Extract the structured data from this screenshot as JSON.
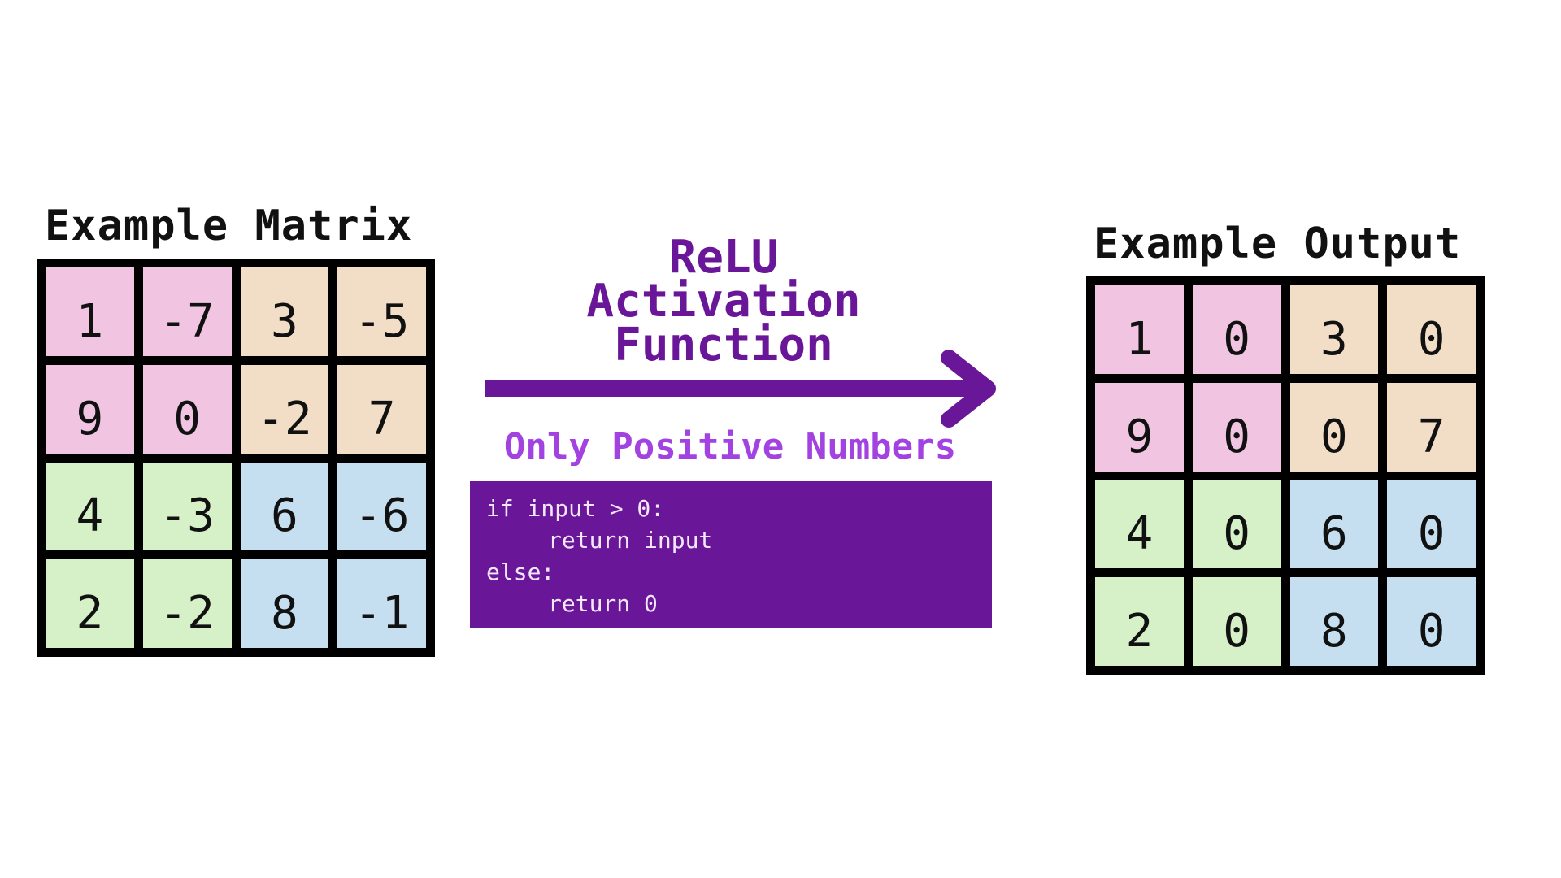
{
  "input_matrix": {
    "title": "Example Matrix",
    "rows": [
      [
        "1",
        "-7",
        "3",
        "-5"
      ],
      [
        "9",
        "0",
        "-2",
        "7"
      ],
      [
        "4",
        "-3",
        "6",
        "-6"
      ],
      [
        "2",
        "-2",
        "8",
        "-1"
      ]
    ]
  },
  "output_matrix": {
    "title": "Example Output",
    "rows": [
      [
        "1",
        "0",
        "3",
        "0"
      ],
      [
        "9",
        "0",
        "0",
        "7"
      ],
      [
        "4",
        "0",
        "6",
        "0"
      ],
      [
        "2",
        "0",
        "8",
        "0"
      ]
    ]
  },
  "relu": {
    "title_lines": [
      "ReLU",
      "Activation",
      "Function"
    ],
    "subtitle": "Only Positive Numbers",
    "code_lines": [
      "if input > 0:",
      "return input",
      "else:",
      "return 0"
    ]
  },
  "colors": {
    "quadrant_top_left": "#f1c5e2",
    "quadrant_top_right": "#f2ddc6",
    "quadrant_bottom_left": "#d6f0c8",
    "quadrant_bottom_right": "#c5dff0",
    "accent_purple": "#6a1699",
    "subtitle_purple": "#a242e0"
  }
}
